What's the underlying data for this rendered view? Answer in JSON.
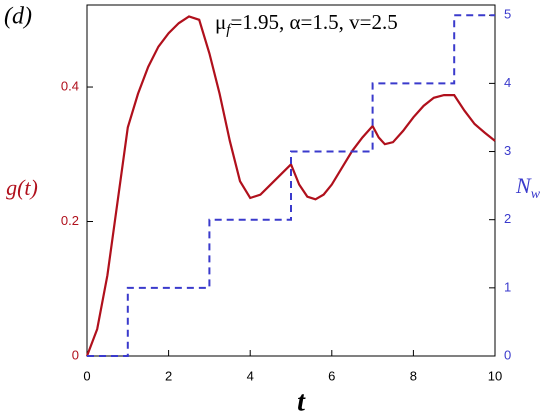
{
  "chart_data": {
    "type": "line",
    "title": "(d)",
    "annotation": [
      "μ",
      "f",
      "=1.95, α=1.5, v=2.5"
    ],
    "xlabel": "t",
    "ylabel": "g(t)",
    "y2label": [
      "N",
      "w"
    ],
    "xlim": [
      0,
      10
    ],
    "xticks": [
      0,
      2,
      4,
      6,
      8,
      10
    ],
    "ylim": [
      0,
      0.522
    ],
    "yticks": [
      0,
      0.2,
      0.4
    ],
    "y2lim": [
      0,
      5.15
    ],
    "y2ticks": [
      0,
      1,
      2,
      3,
      4,
      5
    ],
    "series": [
      {
        "color": "#b0101c",
        "dash": false,
        "x": [
          0,
          0.25,
          0.5,
          0.75,
          1,
          1.25,
          1.5,
          1.75,
          2,
          2.25,
          2.5,
          2.75,
          3,
          3.25,
          3.5,
          3.75,
          4,
          4.25,
          4.5,
          4.75,
          5,
          5.2,
          5.4,
          5.6,
          5.8,
          6,
          6.25,
          6.5,
          6.75,
          7,
          7.15,
          7.3,
          7.5,
          7.75,
          8,
          8.25,
          8.5,
          8.75,
          9,
          9.25,
          9.5,
          9.75,
          10
        ],
        "values": [
          0,
          0.04,
          0.12,
          0.23,
          0.34,
          0.39,
          0.43,
          0.46,
          0.48,
          0.495,
          0.505,
          0.5,
          0.45,
          0.39,
          0.32,
          0.26,
          0.235,
          0.24,
          0.255,
          0.27,
          0.285,
          0.255,
          0.237,
          0.233,
          0.24,
          0.255,
          0.28,
          0.305,
          0.325,
          0.342,
          0.325,
          0.315,
          0.318,
          0.335,
          0.355,
          0.372,
          0.384,
          0.388,
          0.388,
          0.365,
          0.345,
          0.332,
          0.32
        ]
      },
      {
        "color": "#3a3acc",
        "dash": true,
        "axis": "y2",
        "x": [
          0,
          1,
          1,
          3,
          3,
          5,
          5,
          7,
          7,
          9,
          9,
          10
        ],
        "values": [
          0,
          0,
          1,
          1,
          2,
          2,
          3,
          3,
          4,
          4,
          5,
          5
        ]
      }
    ]
  }
}
